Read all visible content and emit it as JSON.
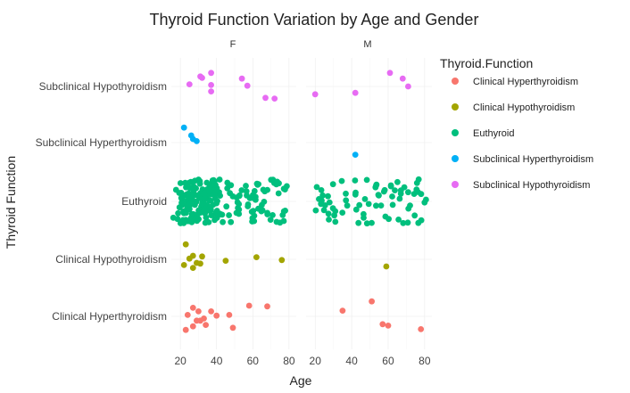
{
  "chart_data": {
    "type": "scatter",
    "title": "Thyroid Function Variation by Age and Gender",
    "xlabel": "Age",
    "ylabel": "Thyroid Function",
    "xlim": [
      15,
      84
    ],
    "x_ticks": [
      20,
      40,
      60,
      80
    ],
    "facets": [
      "F",
      "M"
    ],
    "categories": [
      "Clinical Hyperthyroidism",
      "Clinical Hypothyroidism",
      "Euthyroid",
      "Subclinical Hyperthyroidism",
      "Subclinical Hypothyroidism"
    ],
    "legend": {
      "title": "Thyroid.Function",
      "position": "right",
      "items": [
        {
          "name": "Clinical Hyperthyroidism",
          "color": "#F8766D"
        },
        {
          "name": "Clinical Hypothyroidism",
          "color": "#A3A500"
        },
        {
          "name": "Euthyroid",
          "color": "#00BF7D"
        },
        {
          "name": "Subclinical Hyperthyroidism",
          "color": "#00B0F6"
        },
        {
          "name": "Subclinical Hypothyroidism",
          "color": "#E76BF3"
        }
      ]
    },
    "grid": true,
    "series": [
      {
        "name": "Subclinical Hypothyroidism",
        "facet": "F",
        "points": [
          [
            25,
            0.06
          ],
          [
            31,
            0.28
          ],
          [
            32,
            0.24
          ],
          [
            37,
            0.38
          ],
          [
            37,
            0.04
          ],
          [
            37,
            -0.14
          ],
          [
            54,
            0.22
          ],
          [
            57,
            0.02
          ],
          [
            67,
            -0.32
          ],
          [
            72,
            -0.34
          ]
        ]
      },
      {
        "name": "Subclinical Hypothyroidism",
        "facet": "M",
        "points": [
          [
            20,
            -0.22
          ],
          [
            42,
            -0.18
          ],
          [
            61,
            0.38
          ],
          [
            68,
            0.22
          ],
          [
            71,
            0.0
          ]
        ]
      },
      {
        "name": "Subclinical Hyperthyroidism",
        "facet": "F",
        "points": [
          [
            22,
            0.42
          ],
          [
            26,
            0.2
          ],
          [
            27,
            0.1
          ],
          [
            29,
            0.04
          ]
        ]
      },
      {
        "name": "Subclinical Hyperthyroidism",
        "facet": "M",
        "points": [
          [
            42,
            -0.34
          ]
        ]
      },
      {
        "name": "Clinical Hypothyroidism",
        "facet": "F",
        "points": [
          [
            23,
            0.42
          ],
          [
            22,
            -0.16
          ],
          [
            25,
            0.02
          ],
          [
            27,
            -0.24
          ],
          [
            27,
            0.1
          ],
          [
            29,
            -0.1
          ],
          [
            31,
            -0.12
          ],
          [
            32,
            0.08
          ],
          [
            45,
            -0.04
          ],
          [
            62,
            0.06
          ],
          [
            76,
            -0.02
          ]
        ]
      },
      {
        "name": "Clinical Hypothyroidism",
        "facet": "M",
        "points": [
          [
            59,
            -0.2
          ]
        ]
      },
      {
        "name": "Clinical Hyperthyroidism",
        "facet": "F",
        "points": [
          [
            23,
            -0.38
          ],
          [
            24,
            0.04
          ],
          [
            27,
            -0.28
          ],
          [
            27,
            0.24
          ],
          [
            29,
            -0.12
          ],
          [
            30,
            0.14
          ],
          [
            31,
            -0.12
          ],
          [
            33,
            -0.06
          ],
          [
            34,
            -0.24
          ],
          [
            37,
            0.14
          ],
          [
            40,
            0.02
          ],
          [
            47,
            0.04
          ],
          [
            49,
            -0.32
          ],
          [
            58,
            0.3
          ],
          [
            68,
            0.28
          ]
        ]
      },
      {
        "name": "Clinical Hyperthyroidism",
        "facet": "M",
        "points": [
          [
            35,
            0.16
          ],
          [
            51,
            0.42
          ],
          [
            57,
            -0.22
          ],
          [
            60,
            -0.26
          ],
          [
            78,
            -0.36
          ]
        ]
      }
    ],
    "euthyroid_counts": {
      "F": 210,
      "M": 75
    },
    "euthyroid_color": "#00BF7D"
  }
}
